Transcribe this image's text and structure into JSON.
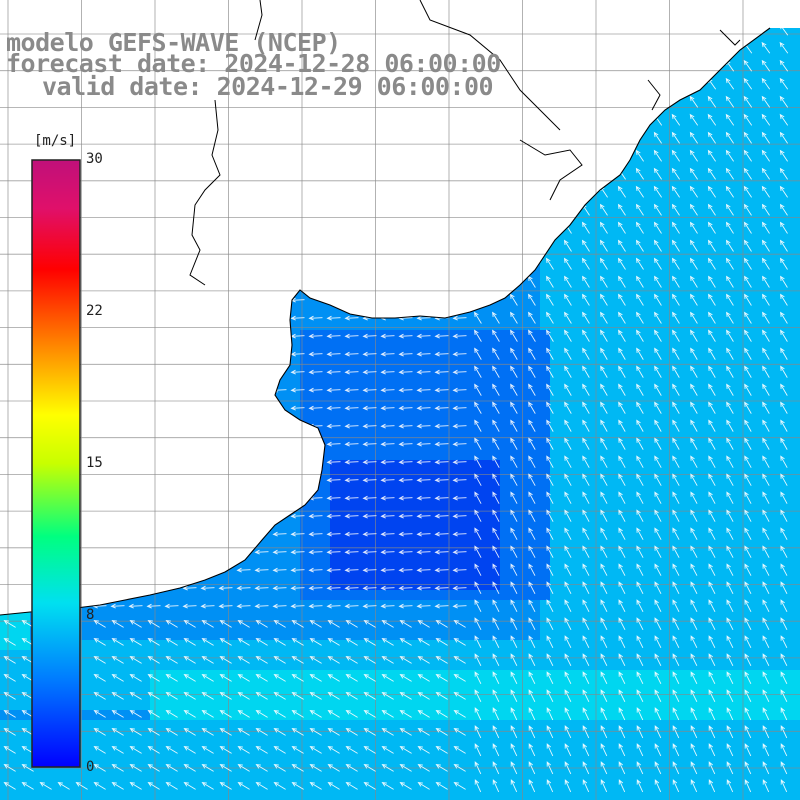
{
  "titles": {
    "model": "modelo GEFS-WAVE (NCEP)",
    "forecast": "forecast date: 2024-12-28 06:00:00",
    "valid": "valid date: 2024-12-29 06:00:00"
  },
  "colorbar": {
    "unit": "[m/s]",
    "ticks": [
      "30",
      "22",
      "15",
      "8",
      "0"
    ],
    "tick_values": [
      30,
      22,
      15,
      8,
      0
    ],
    "colors": [
      "#0000ff",
      "#00aaff",
      "#00e8f0",
      "#00ff80",
      "#80ff00",
      "#ffff00",
      "#ff8000",
      "#ff0000",
      "#e00080",
      "#c0107a"
    ]
  },
  "map": {
    "ocean_colors": [
      "#0044f0",
      "#0070f4",
      "#0090f4",
      "#00b8f4",
      "#00d6f0"
    ],
    "land_color": "#ffffff",
    "grid_color": "#888888",
    "coast_color": "#000000",
    "arrow_color": "#ffffff"
  }
}
